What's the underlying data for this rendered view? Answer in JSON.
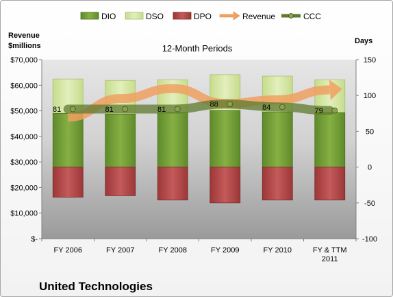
{
  "company": "United Technologies",
  "chart_data": {
    "type": "bar",
    "title": "12-Month Periods",
    "left_axis_title": [
      "Revenue",
      "$millions"
    ],
    "right_axis_title": "Days",
    "categories": [
      [
        "FY 2006"
      ],
      [
        "FY 2007"
      ],
      [
        "FY 2008"
      ],
      [
        "FY 2009"
      ],
      [
        "FY 2010"
      ],
      [
        "FY & TTM",
        "2011"
      ]
    ],
    "left_ylim": [
      0,
      70000
    ],
    "left_ticks": [
      0,
      10000,
      20000,
      30000,
      40000,
      50000,
      60000,
      70000
    ],
    "left_tick_labels": [
      "$-",
      "$10,000",
      "$20,000",
      "$30,000",
      "$40,000",
      "$50,000",
      "$60,000",
      "$70,000"
    ],
    "right_ylim": [
      -100,
      150
    ],
    "right_ticks": [
      -100,
      -50,
      0,
      50,
      100,
      150
    ],
    "right_tick_labels": [
      "-100",
      "-50",
      "0",
      "50",
      "100",
      "150"
    ],
    "series": [
      {
        "name": "DIO",
        "axis": "right",
        "type": "stacked-bar",
        "color": "#7aa43a",
        "values": [
          75,
          74,
          76,
          79,
          77,
          76
        ]
      },
      {
        "name": "DSO",
        "axis": "right",
        "type": "stacked-bar",
        "color": "#d4e6a5",
        "values": [
          48,
          47,
          46,
          50,
          50,
          46
        ]
      },
      {
        "name": "DPO",
        "axis": "right",
        "type": "bar-negative",
        "color": "#b34b4b",
        "values": [
          -42,
          -40,
          -46,
          -50,
          -46,
          -46
        ]
      },
      {
        "name": "Revenue",
        "axis": "left",
        "type": "arrow",
        "color": "#f0a060",
        "values": [
          47500,
          54800,
          58700,
          52900,
          54300,
          58200
        ]
      },
      {
        "name": "CCC",
        "axis": "right",
        "type": "line",
        "color": "#5e7a2e",
        "values": [
          81,
          81,
          81,
          88,
          84,
          79
        ],
        "labels": [
          "81",
          "81",
          "81",
          "88",
          "84",
          "79"
        ]
      }
    ],
    "grid": false,
    "legend": "top"
  }
}
